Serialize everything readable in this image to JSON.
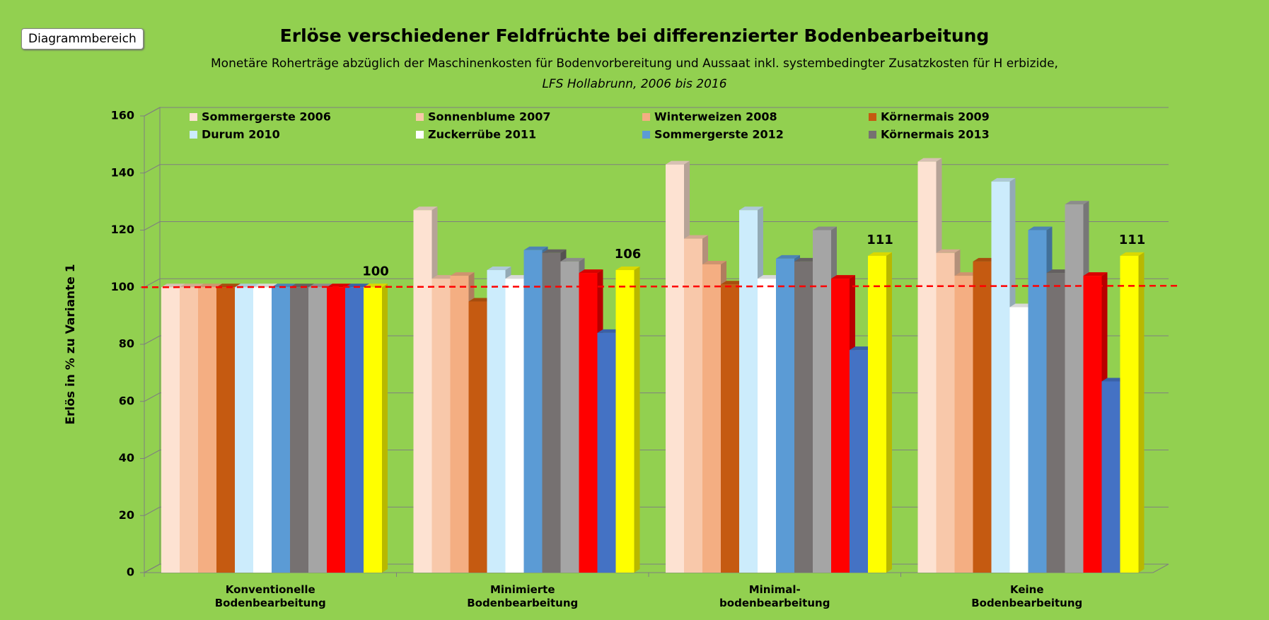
{
  "tooltip": "Diagrammbereich",
  "chart_data": {
    "type": "bar",
    "title": "Erlöse verschiedener Feldfrüchte bei differenzierter Bodenbearbeitung",
    "subtitle": "Monetäre Roherträge abzüglich der Maschinenkosten für Bodenvorbereitung und Aussaat  inkl. systembedingter Zusatzkosten für H erbizide,",
    "subtitle2": "LFS Hollabrunn, 2006 bis 2016",
    "ylabel": "Erlös in % zu Variante 1",
    "categories": [
      "Konventionelle\nBodenbearbeitung",
      "Minimierte\nBodenbearbeitung",
      "Minimal-\nbodenbearbeitung",
      "Keine\nBodenbearbeitung"
    ],
    "series": [
      {
        "name": "Sommergerste 2006",
        "color": "#fde2d2",
        "values": [
          100,
          127,
          143,
          144
        ]
      },
      {
        "name": "Sonnenblume 2007",
        "color": "#f8c8aa",
        "values": [
          100,
          103,
          117,
          112
        ]
      },
      {
        "name": "Winterweizen 2008",
        "color": "#f4ae82",
        "values": [
          100,
          104,
          108,
          104
        ]
      },
      {
        "name": "Körnermais 2009",
        "color": "#c55a11",
        "values": [
          100,
          95,
          101,
          109
        ]
      },
      {
        "name": "Durum 2010",
        "color": "#ccecfc",
        "values": [
          100,
          106,
          127,
          137
        ]
      },
      {
        "name": "Zuckerrübe 2011",
        "color": "#ffffff",
        "values": [
          100,
          103,
          103,
          93
        ]
      },
      {
        "name": "Sommergerste 2012",
        "color": "#5b9bd5",
        "values": [
          100,
          113,
          110,
          120
        ]
      },
      {
        "name": "Körnermais 2013",
        "color": "#767171",
        "values": [
          100,
          112,
          109,
          105
        ]
      },
      {
        "color": "#a5a5a5",
        "values": [
          100,
          109,
          120,
          129
        ]
      },
      {
        "color": "#ff0000",
        "values": [
          100,
          105,
          103,
          104
        ]
      },
      {
        "color": "#4472c4",
        "values": [
          100,
          84,
          78,
          67
        ]
      },
      {
        "color": "#ffff00",
        "values": [
          100,
          106,
          111,
          111
        ],
        "data_labels": true
      }
    ],
    "ylim": [
      0,
      160
    ],
    "yticks": [
      0,
      20,
      40,
      60,
      80,
      100,
      120,
      140,
      160
    ],
    "grid": true,
    "reference_line": {
      "value": 100,
      "color": "#ff0000"
    },
    "legend": "top"
  }
}
